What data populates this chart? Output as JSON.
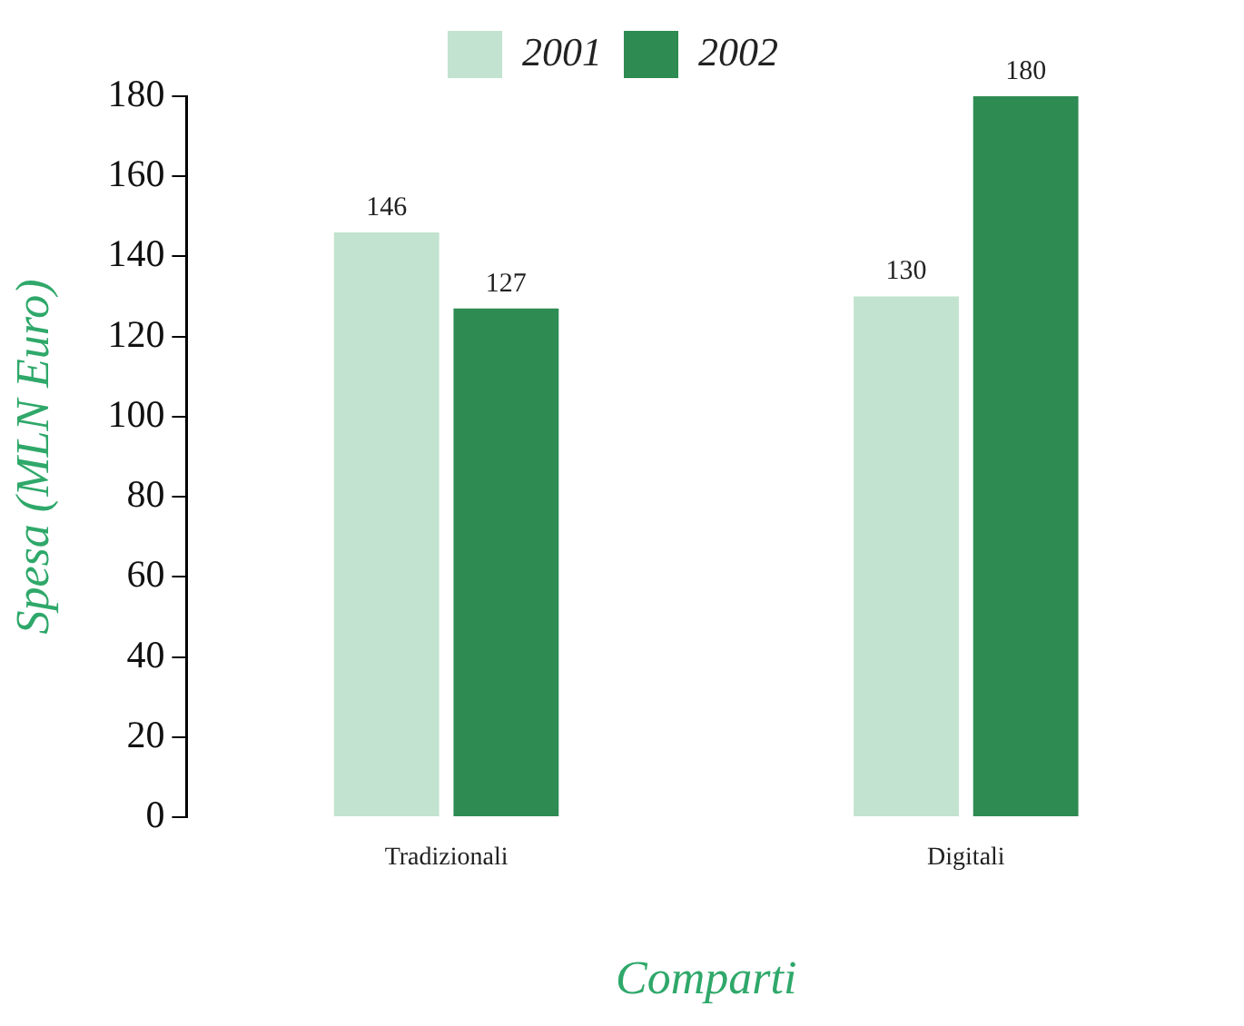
{
  "chart_data": {
    "type": "bar",
    "xlabel": "Comparti",
    "ylabel": "Spesa (MLN Euro)",
    "categories": [
      "Tradizionali",
      "Digitali"
    ],
    "series": [
      {
        "name": "2001",
        "color": "#c2e3cf",
        "values": [
          146,
          130
        ]
      },
      {
        "name": "2002",
        "color": "#2e8b52",
        "values": [
          127,
          180
        ]
      }
    ],
    "ylim": [
      0,
      180
    ],
    "yticks": [
      0,
      20,
      40,
      60,
      80,
      100,
      120,
      140,
      160,
      180
    ],
    "grid": false,
    "legend": "top",
    "data_labels": true
  }
}
